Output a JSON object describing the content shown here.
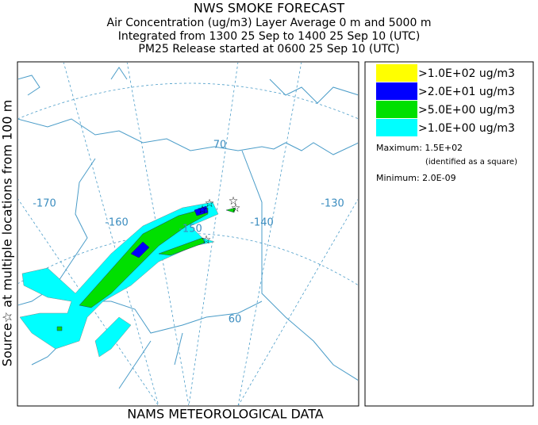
{
  "header": {
    "title": "NWS SMOKE FORECAST",
    "lines": [
      "Air Concentration (ug/m3) Layer Average    0 m and  5000 m",
      "Integrated from 1300 25 Sep to 1400 25 Sep 10 (UTC)",
      "PM25 Release started at 0600 25 Sep 10 (UTC)"
    ]
  },
  "side_label": "Source☆ at multiple locations  from   100 m",
  "footer": "NAMS METEOROLOGICAL DATA",
  "legend": {
    "entries": [
      {
        "label": ">1.0E+02 ug/m3",
        "color": "#ffff00"
      },
      {
        "label": ">2.0E+01 ug/m3",
        "color": "#0000ff"
      },
      {
        "label": ">5.0E+00 ug/m3",
        "color": "#00e000"
      },
      {
        "label": ">1.0E+00 ug/m3",
        "color": "#00ffff"
      }
    ],
    "maximum": "Maximum: 1.5E+02",
    "maximum_note": "(identified as a square)",
    "minimum": "Minimum: 2.0E-09"
  },
  "map": {
    "labels": [
      "-170",
      "-160",
      "-150",
      "-140",
      "-130",
      "70",
      "60"
    ]
  }
}
